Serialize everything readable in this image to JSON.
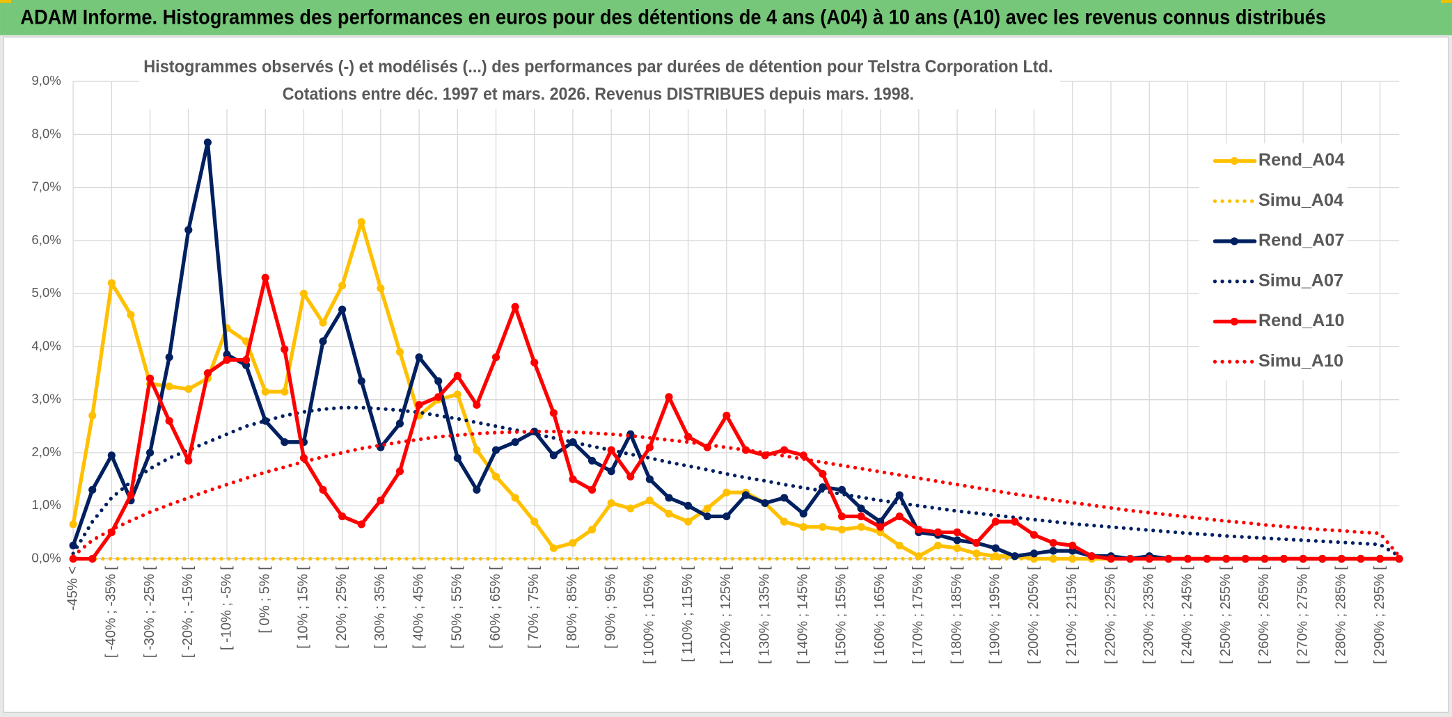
{
  "header": {
    "title": "ADAM Informe. Histogrammes des performances en euros pour des détentions de 4 ans (A04) à 10 ans (A10) avec les revenus connus distribués"
  },
  "chart_data": {
    "type": "line",
    "title": "Histogrammes observés (-) et modélisés (...) des performances par durées de détention pour Telstra Corporation Ltd.",
    "subtitle": "Cotations entre déc. 1997 et mars. 2026. Revenus DISTRIBUES depuis mars. 1998.",
    "categories": [
      "-45% <",
      null,
      "[ -40% ; -35% [",
      null,
      "[ -30% ; -25% [",
      null,
      "[ -20% ; -15% [",
      null,
      "[ -10% ; -5% [",
      null,
      "[ 0% ; 5% [",
      null,
      "[ 10% ; 15% [",
      null,
      "[ 20% ; 25% [",
      null,
      "[ 30% ; 35% [",
      null,
      "[ 40% ; 45% [",
      null,
      "[ 50% ; 55% [",
      null,
      "[ 60% ; 65% [",
      null,
      "[ 70% ; 75% [",
      null,
      "[ 80% ; 85% [",
      null,
      "[ 90% ; 95% [",
      null,
      "[ 100% ; 105% [",
      null,
      "[ 110% ; 115% [",
      null,
      "[ 120% ; 125% [",
      null,
      "[ 130% ; 135% [",
      null,
      "[ 140% ; 145% [",
      null,
      "[ 150% ; 155% [",
      null,
      "[ 160% ; 165% [",
      null,
      "[ 170% ; 175% [",
      null,
      "[ 180% ; 185% [",
      null,
      "[ 190% ; 195% [",
      null,
      "[ 200% ; 205% [",
      null,
      "[ 210% ; 215% [",
      null,
      "[ 220% ; 225% [",
      null,
      "[ 230% ; 235% [",
      null,
      "[ 240% ; 245% [",
      null,
      "[ 250% ; 255% [",
      null,
      "[ 260% ; 265% [",
      null,
      "[ 270% ; 275% [",
      null,
      "[ 280% ; 285% [",
      null,
      "[ 290% ; 295% [",
      null
    ],
    "ylim": [
      0,
      9
    ],
    "yticks": [
      {
        "value": 0,
        "label": "0,0%"
      },
      {
        "value": 1,
        "label": "1,0%"
      },
      {
        "value": 2,
        "label": "2,0%"
      },
      {
        "value": 3,
        "label": "3,0%"
      },
      {
        "value": 4,
        "label": "4,0%"
      },
      {
        "value": 5,
        "label": "5,0%"
      },
      {
        "value": 6,
        "label": "6,0%"
      },
      {
        "value": 7,
        "label": "7,0%"
      },
      {
        "value": 8,
        "label": "8,0%"
      },
      {
        "value": 9,
        "label": "9,0%"
      }
    ],
    "grid": true,
    "legend": "upper right",
    "series": [
      {
        "name": "Rend_A04",
        "color": "#FFC000",
        "style": "solid",
        "markers": true,
        "values": [
          0.65,
          2.7,
          5.2,
          4.6,
          3.3,
          3.25,
          3.2,
          3.4,
          4.35,
          4.1,
          3.15,
          3.15,
          5.0,
          4.45,
          5.15,
          6.35,
          5.1,
          3.9,
          2.7,
          3.0,
          3.1,
          2.05,
          1.55,
          1.15,
          0.7,
          0.2,
          0.3,
          0.55,
          1.05,
          0.95,
          1.1,
          0.85,
          0.7,
          0.95,
          1.25,
          1.25,
          1.05,
          0.7,
          0.6,
          0.6,
          0.55,
          0.6,
          0.5,
          0.25,
          0.05,
          0.25,
          0.2,
          0.1,
          0.05,
          0.05,
          0,
          0,
          0,
          0,
          0,
          0,
          0,
          0,
          0,
          0,
          0,
          0,
          0,
          0,
          0,
          0,
          0,
          0,
          0,
          0
        ]
      },
      {
        "name": "Simu_A04",
        "color": "#FFC000",
        "style": "dotted",
        "markers": false,
        "values": [
          0,
          0,
          0,
          0,
          0,
          0,
          0,
          0,
          0,
          0,
          0,
          0,
          0,
          0,
          0,
          0,
          0,
          0,
          0,
          0,
          0,
          0,
          0,
          0,
          0,
          0,
          0,
          0,
          0,
          0,
          0,
          0,
          0,
          0,
          0,
          0,
          0,
          0,
          0,
          0,
          0,
          0,
          0,
          0,
          0,
          0,
          0,
          0,
          0,
          0,
          0,
          0,
          0,
          0,
          0,
          0,
          0,
          0,
          0,
          0,
          0,
          0,
          0,
          0,
          0,
          0,
          0,
          0,
          0,
          0
        ]
      },
      {
        "name": "Rend_A07",
        "color": "#002060",
        "style": "solid",
        "markers": true,
        "values": [
          0.25,
          1.3,
          1.95,
          1.1,
          2.0,
          3.8,
          6.2,
          7.85,
          3.85,
          3.65,
          2.6,
          2.2,
          2.2,
          4.1,
          4.7,
          3.35,
          2.1,
          2.55,
          3.8,
          3.35,
          1.9,
          1.3,
          2.05,
          2.2,
          2.4,
          1.95,
          2.2,
          1.85,
          1.65,
          2.35,
          1.5,
          1.15,
          1.0,
          0.8,
          0.8,
          1.2,
          1.05,
          1.15,
          0.85,
          1.35,
          1.3,
          0.95,
          0.7,
          1.2,
          0.5,
          0.45,
          0.35,
          0.3,
          0.2,
          0.05,
          0.1,
          0.15,
          0.15,
          0.05,
          0.05,
          0,
          0.05,
          0,
          0,
          0,
          0,
          0,
          0,
          0,
          0,
          0,
          0,
          0,
          0,
          0
        ]
      },
      {
        "name": "Simu_A07",
        "color": "#002060",
        "style": "dotted",
        "markers": false,
        "values": [
          0.1,
          0.7,
          1.15,
          1.45,
          1.7,
          1.9,
          2.05,
          2.2,
          2.35,
          2.5,
          2.6,
          2.7,
          2.77,
          2.82,
          2.85,
          2.85,
          2.83,
          2.8,
          2.76,
          2.7,
          2.64,
          2.57,
          2.5,
          2.43,
          2.35,
          2.28,
          2.2,
          2.12,
          2.05,
          1.97,
          1.9,
          1.82,
          1.75,
          1.68,
          1.6,
          1.53,
          1.47,
          1.4,
          1.34,
          1.28,
          1.22,
          1.16,
          1.1,
          1.05,
          1.0,
          0.95,
          0.9,
          0.86,
          0.82,
          0.78,
          0.74,
          0.7,
          0.66,
          0.63,
          0.6,
          0.57,
          0.54,
          0.51,
          0.48,
          0.46,
          0.43,
          0.41,
          0.39,
          0.37,
          0.35,
          0.33,
          0.31,
          0.29,
          0.27,
          0.05
        ]
      },
      {
        "name": "Rend_A10",
        "color": "#FF0000",
        "style": "solid",
        "markers": true,
        "values": [
          0,
          0,
          0.5,
          1.2,
          3.4,
          2.6,
          1.85,
          3.5,
          3.75,
          3.75,
          5.3,
          3.95,
          1.9,
          1.3,
          0.8,
          0.65,
          1.1,
          1.65,
          2.9,
          3.05,
          3.45,
          2.9,
          3.8,
          4.75,
          3.7,
          2.75,
          1.5,
          1.3,
          2.05,
          1.55,
          2.1,
          3.05,
          2.3,
          2.1,
          2.7,
          2.05,
          1.95,
          2.05,
          1.95,
          1.6,
          0.8,
          0.8,
          0.6,
          0.8,
          0.55,
          0.5,
          0.5,
          0.3,
          0.7,
          0.7,
          0.45,
          0.3,
          0.25,
          0.05,
          0,
          0,
          0,
          0,
          0,
          0,
          0,
          0,
          0,
          0,
          0,
          0,
          0,
          0,
          0,
          0
        ]
      },
      {
        "name": "Simu_A10",
        "color": "#FF0000",
        "style": "dotted",
        "markers": false,
        "values": [
          0.05,
          0.35,
          0.55,
          0.72,
          0.88,
          1.02,
          1.15,
          1.28,
          1.4,
          1.52,
          1.63,
          1.73,
          1.83,
          1.92,
          2.0,
          2.08,
          2.14,
          2.2,
          2.25,
          2.3,
          2.33,
          2.36,
          2.38,
          2.39,
          2.4,
          2.4,
          2.39,
          2.37,
          2.35,
          2.32,
          2.28,
          2.24,
          2.2,
          2.15,
          2.1,
          2.05,
          2.0,
          1.94,
          1.88,
          1.82,
          1.76,
          1.7,
          1.64,
          1.58,
          1.52,
          1.46,
          1.4,
          1.34,
          1.28,
          1.22,
          1.17,
          1.11,
          1.06,
          1.01,
          0.96,
          0.91,
          0.87,
          0.83,
          0.79,
          0.75,
          0.71,
          0.68,
          0.64,
          0.61,
          0.58,
          0.55,
          0.53,
          0.5,
          0.48,
          0.05
        ]
      }
    ]
  }
}
